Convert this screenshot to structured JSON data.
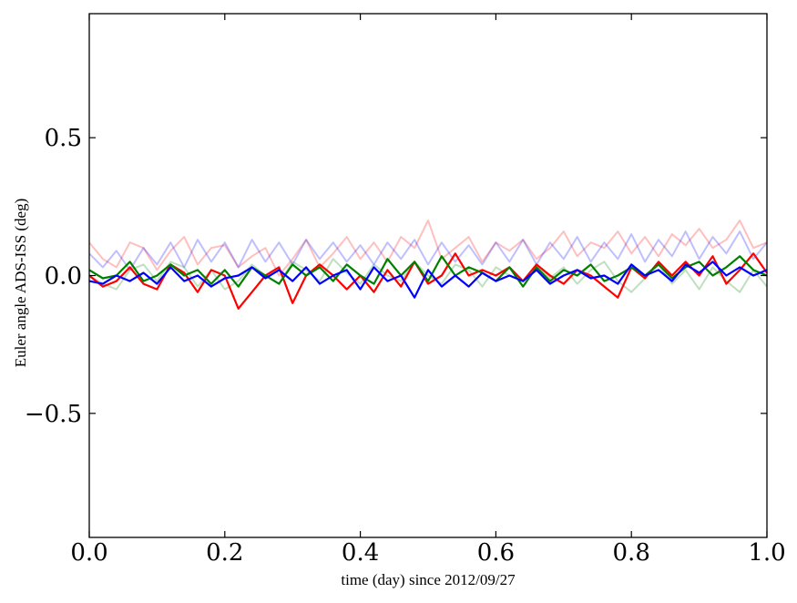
{
  "chart_data": {
    "type": "line",
    "xlabel": "time (day) since 2012/09/27",
    "ylabel": "Euler angle ADS-ISS (deg)",
    "xlim": [
      0.0,
      1.0
    ],
    "ylim": [
      -0.95,
      0.95
    ],
    "xticks": [
      0.0,
      0.2,
      0.4,
      0.6,
      0.8,
      1.0
    ],
    "xtick_labels": [
      "0.0",
      "0.2",
      "0.4",
      "0.6",
      "0.8",
      "1.0"
    ],
    "yticks": [
      0.5,
      0.0,
      -0.5
    ],
    "ytick_labels": [
      "0.5",
      "0.0",
      "−0.5"
    ],
    "grid": false,
    "series": [
      {
        "color": "#ff0000",
        "opacity": 0.25,
        "x": [
          0.0,
          0.02,
          0.04,
          0.06,
          0.08,
          0.1,
          0.12,
          0.14,
          0.16,
          0.18,
          0.2,
          0.22,
          0.24,
          0.26,
          0.28,
          0.3,
          0.32,
          0.34,
          0.36,
          0.38,
          0.4,
          0.42,
          0.44,
          0.46,
          0.48,
          0.5,
          0.52,
          0.54,
          0.56,
          0.58,
          0.6,
          0.62,
          0.64,
          0.66,
          0.68,
          0.7,
          0.72,
          0.74,
          0.76,
          0.78,
          0.8,
          0.82,
          0.84,
          0.86,
          0.88,
          0.9,
          0.92,
          0.94,
          0.96,
          0.98,
          1.0
        ],
        "y": [
          0.12,
          0.06,
          0.03,
          0.12,
          0.1,
          0.02,
          0.09,
          0.14,
          0.04,
          0.1,
          0.11,
          0.03,
          0.07,
          0.1,
          0.0,
          0.06,
          0.13,
          0.03,
          0.08,
          0.14,
          0.06,
          0.12,
          0.05,
          0.14,
          0.1,
          0.2,
          0.06,
          0.1,
          0.14,
          0.05,
          0.12,
          0.09,
          0.13,
          0.06,
          0.1,
          0.16,
          0.07,
          0.12,
          0.1,
          0.16,
          0.08,
          0.14,
          0.07,
          0.15,
          0.11,
          0.17,
          0.1,
          0.13,
          0.2,
          0.1,
          0.12
        ]
      },
      {
        "color": "#008000",
        "opacity": 0.25,
        "x": [
          0.0,
          0.02,
          0.04,
          0.06,
          0.08,
          0.1,
          0.12,
          0.14,
          0.16,
          0.18,
          0.2,
          0.22,
          0.24,
          0.26,
          0.28,
          0.3,
          0.32,
          0.34,
          0.36,
          0.38,
          0.4,
          0.42,
          0.44,
          0.46,
          0.48,
          0.5,
          0.52,
          0.54,
          0.56,
          0.58,
          0.6,
          0.62,
          0.64,
          0.66,
          0.68,
          0.7,
          0.72,
          0.74,
          0.76,
          0.78,
          0.8,
          0.82,
          0.84,
          0.86,
          0.88,
          0.9,
          0.92,
          0.94,
          0.96,
          0.98,
          1.0
        ],
        "y": [
          0.0,
          -0.03,
          -0.05,
          0.02,
          0.04,
          -0.02,
          0.05,
          0.03,
          -0.04,
          0.02,
          -0.05,
          -0.02,
          0.04,
          0.0,
          -0.03,
          0.05,
          0.02,
          -0.02,
          0.06,
          0.01,
          -0.03,
          0.04,
          0.0,
          -0.02,
          0.05,
          0.0,
          -0.03,
          0.04,
          0.02,
          -0.04,
          0.03,
          0.0,
          -0.02,
          0.04,
          -0.01,
          0.03,
          -0.03,
          0.02,
          0.05,
          -0.02,
          -0.06,
          -0.01,
          0.04,
          -0.03,
          0.02,
          -0.05,
          0.03,
          -0.02,
          -0.06,
          0.02,
          -0.04
        ]
      },
      {
        "color": "#0000ff",
        "opacity": 0.25,
        "x": [
          0.0,
          0.02,
          0.04,
          0.06,
          0.08,
          0.1,
          0.12,
          0.14,
          0.16,
          0.18,
          0.2,
          0.22,
          0.24,
          0.26,
          0.28,
          0.3,
          0.32,
          0.34,
          0.36,
          0.38,
          0.4,
          0.42,
          0.44,
          0.46,
          0.48,
          0.5,
          0.52,
          0.54,
          0.56,
          0.58,
          0.6,
          0.62,
          0.64,
          0.66,
          0.68,
          0.7,
          0.72,
          0.74,
          0.76,
          0.78,
          0.8,
          0.82,
          0.84,
          0.86,
          0.88,
          0.9,
          0.92,
          0.94,
          0.96,
          0.98,
          1.0
        ],
        "y": [
          0.08,
          0.03,
          0.09,
          0.02,
          0.1,
          0.04,
          0.12,
          0.03,
          0.13,
          0.05,
          0.12,
          0.03,
          0.13,
          0.05,
          0.12,
          0.04,
          0.13,
          0.06,
          0.12,
          0.05,
          0.11,
          0.04,
          0.12,
          0.06,
          0.13,
          0.04,
          0.12,
          0.05,
          0.11,
          0.04,
          0.12,
          0.05,
          0.13,
          0.04,
          0.12,
          0.06,
          0.14,
          0.05,
          0.12,
          0.06,
          0.15,
          0.05,
          0.13,
          0.07,
          0.16,
          0.06,
          0.14,
          0.08,
          0.16,
          0.06,
          0.12
        ]
      },
      {
        "color": "#ff0000",
        "opacity": 1,
        "x": [
          0.0,
          0.02,
          0.04,
          0.06,
          0.08,
          0.1,
          0.12,
          0.14,
          0.16,
          0.18,
          0.2,
          0.22,
          0.24,
          0.26,
          0.28,
          0.3,
          0.32,
          0.34,
          0.36,
          0.38,
          0.4,
          0.42,
          0.44,
          0.46,
          0.48,
          0.5,
          0.52,
          0.54,
          0.56,
          0.58,
          0.6,
          0.62,
          0.64,
          0.66,
          0.68,
          0.7,
          0.72,
          0.74,
          0.76,
          0.78,
          0.8,
          0.82,
          0.84,
          0.86,
          0.88,
          0.9,
          0.92,
          0.94,
          0.96,
          0.98,
          1.0
        ],
        "y": [
          0.0,
          -0.04,
          -0.02,
          0.03,
          -0.03,
          -0.05,
          0.04,
          0.01,
          -0.06,
          0.02,
          0.0,
          -0.12,
          -0.06,
          0.0,
          0.03,
          -0.1,
          0.0,
          0.04,
          0.0,
          -0.05,
          0.0,
          -0.06,
          0.02,
          -0.04,
          0.05,
          -0.03,
          0.0,
          0.08,
          0.0,
          0.02,
          0.0,
          0.03,
          -0.02,
          0.04,
          0.0,
          -0.03,
          0.02,
          0.0,
          -0.04,
          -0.08,
          0.03,
          -0.01,
          0.05,
          0.0,
          0.05,
          0.0,
          0.07,
          -0.03,
          0.02,
          0.08,
          0.01
        ]
      },
      {
        "color": "#008000",
        "opacity": 1,
        "x": [
          0.0,
          0.02,
          0.04,
          0.06,
          0.08,
          0.1,
          0.12,
          0.14,
          0.16,
          0.18,
          0.2,
          0.22,
          0.24,
          0.26,
          0.28,
          0.3,
          0.32,
          0.34,
          0.36,
          0.38,
          0.4,
          0.42,
          0.44,
          0.46,
          0.48,
          0.5,
          0.52,
          0.54,
          0.56,
          0.58,
          0.6,
          0.62,
          0.64,
          0.66,
          0.68,
          0.7,
          0.72,
          0.74,
          0.76,
          0.78,
          0.8,
          0.82,
          0.84,
          0.86,
          0.88,
          0.9,
          0.92,
          0.94,
          0.96,
          0.98,
          1.0
        ],
        "y": [
          0.02,
          -0.01,
          0.0,
          0.05,
          -0.02,
          0.0,
          0.04,
          0.0,
          0.02,
          -0.03,
          0.02,
          -0.04,
          0.03,
          0.0,
          -0.03,
          0.04,
          0.0,
          0.03,
          -0.02,
          0.04,
          0.0,
          -0.03,
          0.06,
          0.0,
          0.05,
          -0.02,
          0.07,
          0.0,
          0.03,
          0.01,
          -0.02,
          0.03,
          -0.04,
          0.03,
          -0.02,
          0.02,
          0.0,
          0.04,
          -0.02,
          0.0,
          0.03,
          0.0,
          0.04,
          -0.01,
          0.03,
          0.05,
          0.0,
          0.03,
          0.07,
          0.02,
          0.0
        ]
      },
      {
        "color": "#0000ff",
        "opacity": 1,
        "x": [
          0.0,
          0.02,
          0.04,
          0.06,
          0.08,
          0.1,
          0.12,
          0.14,
          0.16,
          0.18,
          0.2,
          0.22,
          0.24,
          0.26,
          0.28,
          0.3,
          0.32,
          0.34,
          0.36,
          0.38,
          0.4,
          0.42,
          0.44,
          0.46,
          0.48,
          0.5,
          0.52,
          0.54,
          0.56,
          0.58,
          0.6,
          0.62,
          0.64,
          0.66,
          0.68,
          0.7,
          0.72,
          0.74,
          0.76,
          0.78,
          0.8,
          0.82,
          0.84,
          0.86,
          0.88,
          0.9,
          0.92,
          0.94,
          0.96,
          0.98,
          1.0
        ],
        "y": [
          -0.02,
          -0.03,
          0.0,
          -0.02,
          0.01,
          -0.03,
          0.03,
          -0.02,
          0.0,
          -0.04,
          -0.01,
          0.0,
          0.03,
          -0.01,
          0.02,
          -0.02,
          0.03,
          -0.03,
          0.0,
          0.02,
          -0.05,
          0.03,
          -0.02,
          0.0,
          -0.08,
          0.02,
          -0.04,
          0.0,
          -0.04,
          0.01,
          -0.02,
          0.0,
          -0.02,
          0.02,
          -0.03,
          0.0,
          0.02,
          -0.01,
          0.0,
          -0.03,
          0.04,
          0.0,
          0.02,
          -0.02,
          0.04,
          0.01,
          0.05,
          0.0,
          0.03,
          0.0,
          0.02
        ]
      }
    ]
  }
}
